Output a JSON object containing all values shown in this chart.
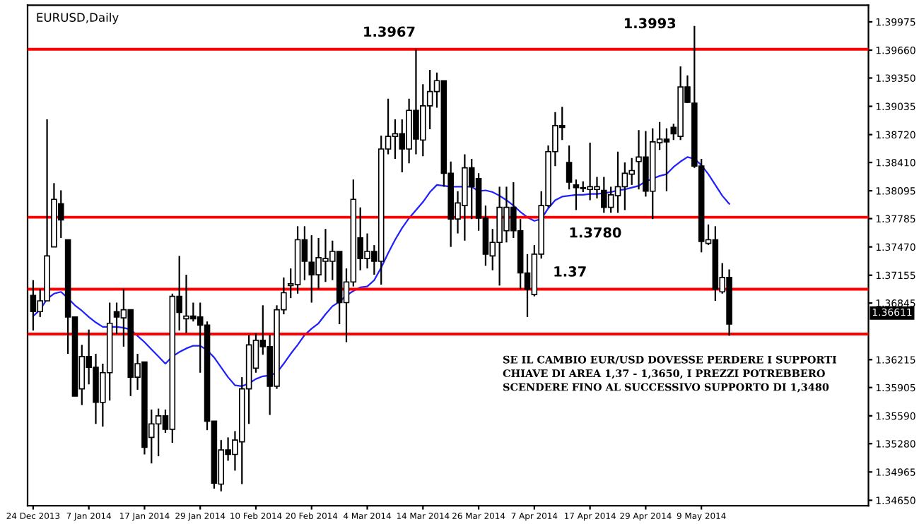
{
  "chart_data": {
    "type": "candlestick",
    "title": "EURUSD,Daily",
    "categories": [
      "24 Dec 2013",
      null,
      null,
      null,
      null,
      null,
      null,
      null,
      "7 Jan 2014",
      null,
      null,
      null,
      null,
      null,
      null,
      null,
      "17 Jan 2014",
      null,
      null,
      null,
      null,
      null,
      null,
      null,
      "29 Jan 2014",
      null,
      null,
      null,
      null,
      null,
      null,
      null,
      "10 Feb 2014",
      null,
      null,
      null,
      null,
      null,
      null,
      null,
      "20 Feb 2014",
      null,
      null,
      null,
      null,
      null,
      null,
      null,
      "4 Mar 2014",
      null,
      null,
      null,
      null,
      null,
      null,
      null,
      "14 Mar 2014",
      null,
      null,
      null,
      null,
      null,
      null,
      null,
      "26 Mar 2014",
      null,
      null,
      null,
      null,
      null,
      null,
      null,
      "7 Apr 2014",
      null,
      null,
      null,
      null,
      null,
      null,
      null,
      "17 Apr 2014",
      null,
      null,
      null,
      null,
      null,
      null,
      null,
      "29 Apr 2014",
      null,
      null,
      null,
      null,
      null,
      null,
      null,
      "9 May 2014",
      null,
      null,
      null,
      null
    ],
    "ohlc": [
      [
        1.3693,
        1.371,
        1.3654,
        1.3675
      ],
      [
        1.3675,
        1.37,
        1.3669,
        1.3687
      ],
      [
        1.3687,
        1.3889,
        1.3687,
        1.3737
      ],
      [
        1.3747,
        1.3818,
        1.3747,
        1.38
      ],
      [
        1.3795,
        1.381,
        1.3757,
        1.3777
      ],
      [
        1.3755,
        1.3755,
        1.3628,
        1.3669
      ],
      [
        1.3669,
        1.3669,
        1.3581,
        1.3581
      ],
      [
        1.3589,
        1.3638,
        1.3571,
        1.3625
      ],
      [
        1.3625,
        1.3655,
        1.3594,
        1.3613
      ],
      [
        1.3613,
        1.3628,
        1.355,
        1.3574
      ],
      [
        1.3574,
        1.3617,
        1.3547,
        1.3607
      ],
      [
        1.3607,
        1.3685,
        1.3576,
        1.3662
      ],
      [
        1.3675,
        1.3685,
        1.365,
        1.3669
      ],
      [
        1.3668,
        1.37,
        1.3636,
        1.3677
      ],
      [
        1.3677,
        1.3677,
        1.3581,
        1.3602
      ],
      [
        1.3602,
        1.3628,
        1.3588,
        1.3617
      ],
      [
        1.3619,
        1.3619,
        1.3516,
        1.3524
      ],
      [
        1.3535,
        1.3566,
        1.3506,
        1.355
      ],
      [
        1.355,
        1.3567,
        1.3514,
        1.3559
      ],
      [
        1.3559,
        1.3566,
        1.354,
        1.3544
      ],
      [
        1.3544,
        1.3695,
        1.3529,
        1.3692
      ],
      [
        1.3692,
        1.3737,
        1.3654,
        1.3674
      ],
      [
        1.3667,
        1.3716,
        1.3651,
        1.367
      ],
      [
        1.367,
        1.3685,
        1.3664,
        1.3667
      ],
      [
        1.3669,
        1.3685,
        1.3607,
        1.366
      ],
      [
        1.366,
        1.3664,
        1.3543,
        1.3553
      ],
      [
        1.3553,
        1.3553,
        1.3478,
        1.3484
      ],
      [
        1.3483,
        1.3532,
        1.3475,
        1.3521
      ],
      [
        1.3521,
        1.3535,
        1.3509,
        1.3516
      ],
      [
        1.3516,
        1.3542,
        1.3498,
        1.3532
      ],
      [
        1.353,
        1.3602,
        1.3483,
        1.3589
      ],
      [
        1.3589,
        1.3649,
        1.355,
        1.3638
      ],
      [
        1.3612,
        1.3651,
        1.3607,
        1.3643
      ],
      [
        1.3643,
        1.3682,
        1.3627,
        1.3636
      ],
      [
        1.3636,
        1.3649,
        1.356,
        1.3592
      ],
      [
        1.3592,
        1.3682,
        1.3589,
        1.3677
      ],
      [
        1.3677,
        1.3713,
        1.3672,
        1.3696
      ],
      [
        1.3704,
        1.3723,
        1.369,
        1.3706
      ],
      [
        1.3705,
        1.377,
        1.3695,
        1.3755
      ],
      [
        1.3755,
        1.377,
        1.371,
        1.3731
      ],
      [
        1.373,
        1.376,
        1.3685,
        1.3716
      ],
      [
        1.3716,
        1.3757,
        1.37,
        1.3735
      ],
      [
        1.3731,
        1.3767,
        1.3708,
        1.3734
      ],
      [
        1.3731,
        1.3754,
        1.371,
        1.3742
      ],
      [
        1.3742,
        1.3742,
        1.3661,
        1.3685
      ],
      [
        1.3685,
        1.3723,
        1.3641,
        1.3708
      ],
      [
        1.3708,
        1.3822,
        1.3703,
        1.38
      ],
      [
        1.3757,
        1.3791,
        1.3721,
        1.3734
      ],
      [
        1.3734,
        1.3762,
        1.3723,
        1.3742
      ],
      [
        1.3742,
        1.3749,
        1.3716,
        1.3731
      ],
      [
        1.3731,
        1.3871,
        1.3705,
        1.3856
      ],
      [
        1.3856,
        1.3912,
        1.385,
        1.387
      ],
      [
        1.387,
        1.3889,
        1.3845,
        1.3873
      ],
      [
        1.3873,
        1.3889,
        1.383,
        1.3856
      ],
      [
        1.3856,
        1.3912,
        1.384,
        1.3899
      ],
      [
        1.3899,
        1.3967,
        1.385,
        1.3867
      ],
      [
        1.3866,
        1.3928,
        1.3848,
        1.3904
      ],
      [
        1.3904,
        1.3944,
        1.3878,
        1.392
      ],
      [
        1.392,
        1.3941,
        1.3902,
        1.3932
      ],
      [
        1.3932,
        1.3932,
        1.3814,
        1.3829
      ],
      [
        1.3829,
        1.3842,
        1.3747,
        1.3778
      ],
      [
        1.3778,
        1.3809,
        1.3762,
        1.3796
      ],
      [
        1.3793,
        1.385,
        1.3754,
        1.3835
      ],
      [
        1.3835,
        1.3845,
        1.3778,
        1.3814
      ],
      [
        1.3823,
        1.3829,
        1.3765,
        1.3779
      ],
      [
        1.3779,
        1.3793,
        1.3726,
        1.3739
      ],
      [
        1.3737,
        1.3767,
        1.3721,
        1.3752
      ],
      [
        1.3752,
        1.3814,
        1.3704,
        1.3791
      ],
      [
        1.3765,
        1.3814,
        1.3752,
        1.3791
      ],
      [
        1.3791,
        1.3819,
        1.3757,
        1.3765
      ],
      [
        1.3765,
        1.3778,
        1.37,
        1.3718
      ],
      [
        1.3718,
        1.3739,
        1.3669,
        1.37
      ],
      [
        1.3694,
        1.3749,
        1.3692,
        1.3739
      ],
      [
        1.3739,
        1.3809,
        1.3734,
        1.3793
      ],
      [
        1.3793,
        1.386,
        1.3791,
        1.3853
      ],
      [
        1.3853,
        1.3897,
        1.3837,
        1.3882
      ],
      [
        1.3882,
        1.3903,
        1.3866,
        1.388
      ],
      [
        1.3841,
        1.386,
        1.3811,
        1.3819
      ],
      [
        1.3816,
        1.3822,
        1.3788,
        1.3813
      ],
      [
        1.3813,
        1.382,
        1.3808,
        1.3812
      ],
      [
        1.3811,
        1.3863,
        1.3799,
        1.3814
      ],
      [
        1.3811,
        1.3825,
        1.3801,
        1.3814
      ],
      [
        1.381,
        1.3825,
        1.3785,
        1.3791
      ],
      [
        1.3791,
        1.3814,
        1.3785,
        1.3805
      ],
      [
        1.3804,
        1.3853,
        1.3785,
        1.3814
      ],
      [
        1.3814,
        1.3841,
        1.3788,
        1.3829
      ],
      [
        1.3828,
        1.3846,
        1.3816,
        1.3832
      ],
      [
        1.3842,
        1.3877,
        1.3811,
        1.3847
      ],
      [
        1.3847,
        1.3876,
        1.3803,
        1.3809
      ],
      [
        1.3809,
        1.3879,
        1.3778,
        1.3864
      ],
      [
        1.3863,
        1.3886,
        1.3855,
        1.3867
      ],
      [
        1.3867,
        1.3879,
        1.3809,
        1.3864
      ],
      [
        1.388,
        1.3884,
        1.3866,
        1.3873
      ],
      [
        1.387,
        1.3948,
        1.3866,
        1.3925
      ],
      [
        1.3925,
        1.3938,
        1.3907,
        1.3908
      ],
      [
        1.3907,
        1.3993,
        1.3835,
        1.3837
      ],
      [
        1.3837,
        1.3845,
        1.3741,
        1.3753
      ],
      [
        1.3751,
        1.3772,
        1.3749,
        1.3755
      ],
      [
        1.3755,
        1.377,
        1.3687,
        1.37
      ],
      [
        1.3697,
        1.3729,
        1.3695,
        1.3713
      ],
      [
        1.3713,
        1.3722,
        1.3648,
        1.36611
      ]
    ],
    "series": [
      {
        "type": "line",
        "color": "#2020ff",
        "values": [
          1.367,
          1.3677,
          1.3689,
          1.3695,
          1.3697,
          1.369,
          1.3682,
          1.3676,
          1.3669,
          1.3663,
          1.3658,
          1.3658,
          1.3658,
          1.3657,
          1.3655,
          1.3648,
          1.3641,
          1.3633,
          1.3625,
          1.3617,
          1.3625,
          1.363,
          1.3634,
          1.3637,
          1.3637,
          1.3632,
          1.3624,
          1.3613,
          1.3602,
          1.3593,
          1.3592,
          1.3595,
          1.36,
          1.3603,
          1.3604,
          1.3607,
          1.3617,
          1.3628,
          1.3638,
          1.3649,
          1.3656,
          1.3662,
          1.3672,
          1.3681,
          1.3686,
          1.3693,
          1.3698,
          1.3702,
          1.3703,
          1.371,
          1.3724,
          1.374,
          1.3755,
          1.3768,
          1.3779,
          1.3788,
          1.3797,
          1.3808,
          1.3816,
          1.3815,
          1.3814,
          1.3814,
          1.3814,
          1.3814,
          1.3809,
          1.381,
          1.3808,
          1.3804,
          1.3799,
          1.3793,
          1.3786,
          1.378,
          1.3776,
          1.3778,
          1.379,
          1.3799,
          1.3803,
          1.3804,
          1.3805,
          1.3805,
          1.3806,
          1.3806,
          1.3807,
          1.3808,
          1.381,
          1.3811,
          1.3813,
          1.3815,
          1.382,
          1.3823,
          1.3826,
          1.3828,
          1.3836,
          1.3842,
          1.3847,
          1.3845,
          1.3838,
          1.3828,
          1.3816,
          1.3804,
          1.3795
        ]
      }
    ],
    "ylim": [
      1.3459,
      1.4016
    ],
    "yticks": [
      {
        "value": 1.39975,
        "label": "1.39975"
      },
      {
        "value": 1.3966,
        "label": "1.39660"
      },
      {
        "value": 1.3935,
        "label": "1.39350"
      },
      {
        "value": 1.39035,
        "label": "1.39035"
      },
      {
        "value": 1.3872,
        "label": "1.38720"
      },
      {
        "value": 1.3841,
        "label": "1.38410"
      },
      {
        "value": 1.38095,
        "label": "1.38095"
      },
      {
        "value": 1.37785,
        "label": "1.37785"
      },
      {
        "value": 1.3747,
        "label": "1.37470"
      },
      {
        "value": 1.37155,
        "label": "1.37155"
      },
      {
        "value": 1.36845,
        "label": "1.36845"
      },
      {
        "value": 1.36215,
        "label": "1.36215"
      },
      {
        "value": 1.35905,
        "label": "1.35905"
      },
      {
        "value": 1.3559,
        "label": "1.35590"
      },
      {
        "value": 1.3528,
        "label": "1.35280"
      },
      {
        "value": 1.34965,
        "label": "1.34965"
      },
      {
        "value": 1.3465,
        "label": "1.34650"
      }
    ],
    "ref_lines": [
      {
        "axis": "y",
        "value": 1.3967,
        "label": "1.3967",
        "color": "#ff0000"
      },
      {
        "axis": "y",
        "value": 1.378,
        "label": "1.3780",
        "color": "#ff0000"
      },
      {
        "axis": "y",
        "value": 1.37,
        "label": "1.37",
        "color": "#ff0000"
      },
      {
        "axis": "y",
        "value": 1.365,
        "color": "#ff0000"
      }
    ],
    "annotations": [
      "1.3993",
      "1.36611",
      "SE IL CAMBIO EUR/USD DOVESSE PERDERE I SUPPORTI\nCHIAVE DI AREA 1,37 - 1,3650, I PREZZI POTREBBERO\nSCENDERE FINO AL SUCCESSIVO SUPPORTO DI 1,3480"
    ],
    "grid": false
  }
}
